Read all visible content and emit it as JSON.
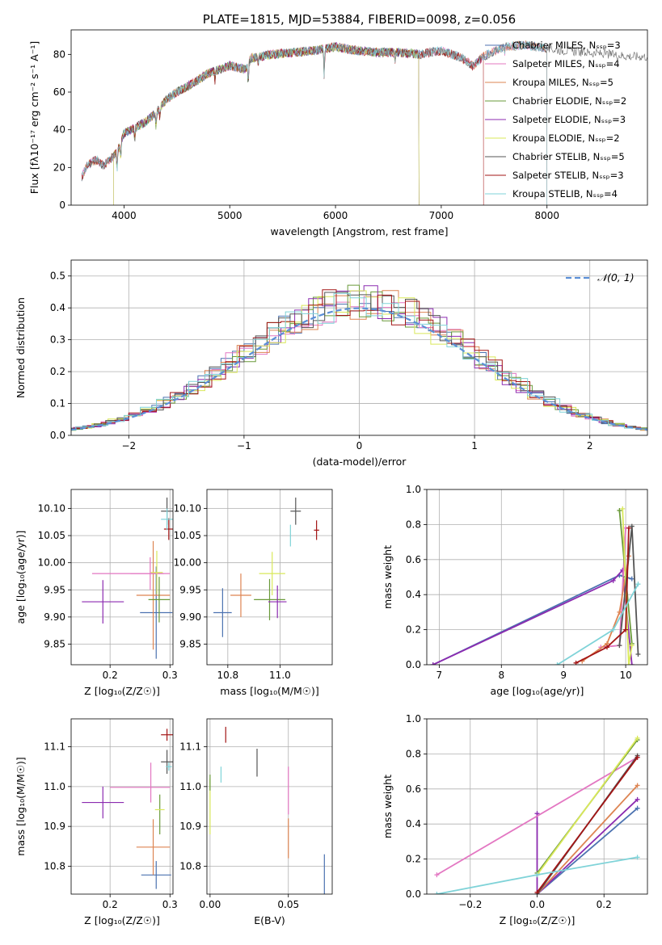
{
  "chart_data": [
    {
      "id": "spectrum",
      "type": "line",
      "title": "PLATE=1815, MJD=53884, FIBERID=0098, z=0.056",
      "xlabel": "wavelength [Angstrom, rest frame]",
      "ylabel": "Flux [fλ10⁻¹⁷ erg cm⁻² s⁻¹ A⁻¹]",
      "xlim": [
        3500,
        8950
      ],
      "ylim": [
        0,
        93
      ],
      "xticks": [
        4000,
        5000,
        6000,
        7000,
        8000
      ],
      "yticks": [
        0,
        20,
        40,
        60,
        80
      ],
      "grid": false,
      "legend_position": "right",
      "continuum": {
        "x": [
          3600,
          3650,
          3700,
          3750,
          3800,
          3850,
          3900,
          3950,
          4000,
          4100,
          4200,
          4300,
          4400,
          4500,
          4600,
          4800,
          5000,
          5150,
          5200,
          5400,
          5600,
          5800,
          6000,
          6200,
          6400,
          6600,
          6800,
          7000,
          7200,
          7300,
          7400,
          7600,
          7800,
          8000,
          8200,
          8400,
          8600,
          8800,
          8950
        ],
        "y": [
          15,
          21,
          23,
          24,
          21,
          23,
          26,
          30,
          38,
          41,
          44,
          49,
          56,
          60,
          63,
          70,
          74,
          72,
          78,
          80,
          81,
          82,
          84,
          82,
          81,
          81,
          80,
          82,
          78,
          74,
          79,
          84,
          85,
          83,
          82,
          81,
          80,
          79,
          79
        ]
      },
      "series": [
        {
          "name": "Chabrier MILES, Nₛₛₚ=3",
          "color": "#4c72b0",
          "xmax": 8000
        },
        {
          "name": "Salpeter MILES, Nₛₛₚ=4",
          "color": "#e377c2",
          "xmax": 8000
        },
        {
          "name": "Kroupa MILES, Nₛₛₚ=5",
          "color": "#dd8452",
          "xmax": 8000
        },
        {
          "name": "Chabrier ELODIE, Nₛₛₚ=2",
          "color": "#6a9a3a",
          "xmax": 6790
        },
        {
          "name": "Salpeter ELODIE, Nₛₛₚ=3",
          "color": "#8c2bb0",
          "xmax": 6790
        },
        {
          "name": "Kroupa ELODIE, Nₛₛₚ=2",
          "color": "#d9e85a",
          "xmax": 6790
        },
        {
          "name": "Chabrier STELIB, Nₛₛₚ=5",
          "color": "#555555",
          "xmax": 8950
        },
        {
          "name": "Salpeter STELIB, Nₛₛₚ=3",
          "color": "#a31515",
          "xmax": 7400
        },
        {
          "name": "Kroupa STELIB, Nₛₛₚ=4",
          "color": "#7fd3d8",
          "xmax": 8000
        }
      ]
    },
    {
      "id": "residuals",
      "type": "line",
      "xlabel": "(data-model)/error",
      "ylabel": "Normed distribution",
      "xlim": [
        -2.5,
        2.5
      ],
      "ylim": [
        0,
        0.55
      ],
      "xticks": [
        -2,
        -1,
        0,
        1,
        2
      ],
      "yticks": [
        0.0,
        0.1,
        0.2,
        0.3,
        0.4,
        0.5
      ],
      "grid": true,
      "legend_position": "top-right",
      "gaussian_label": "𝒩(0, 1)",
      "gaussian_color": "#5b8fd6"
    },
    {
      "id": "age_vs_Z",
      "type": "scatter",
      "xlabel": "Z [log₁₀(Z/Z☉)]",
      "ylabel": "age  [log₁₀(age/yr)]",
      "xlim": [
        0.135,
        0.305
      ],
      "ylim": [
        9.812,
        10.135
      ],
      "xticks": [
        0.2,
        0.3
      ],
      "yticks": [
        9.85,
        9.9,
        9.95,
        10.0,
        10.05,
        10.1
      ],
      "points": [
        {
          "x": 0.277,
          "y": 9.908,
          "xerr": 0.027,
          "yerr": 0.085,
          "color": "#4c72b0"
        },
        {
          "x": 0.267,
          "y": 9.98,
          "xerr": 0.033,
          "yerr": 0.03,
          "color": "#e377c2"
        },
        {
          "x": 0.272,
          "y": 9.94,
          "xerr": 0.028,
          "yerr": 0.1,
          "color": "#dd8452"
        },
        {
          "x": 0.282,
          "y": 9.932,
          "xerr": 0.018,
          "yerr": 0.042,
          "color": "#6a9a3a"
        },
        {
          "x": 0.188,
          "y": 9.928,
          "xerr": 0.035,
          "yerr": 0.04,
          "color": "#8c2bb0"
        },
        {
          "x": 0.23,
          "y": 9.98,
          "xerr": 0.06,
          "yerr": 0.0,
          "color": "#e377c2"
        },
        {
          "x": 0.278,
          "y": 9.982,
          "xerr": 0.01,
          "yerr": 0.04,
          "color": "#d9e85a"
        },
        {
          "x": 0.295,
          "y": 10.095,
          "xerr": 0.01,
          "yerr": 0.025,
          "color": "#555555"
        },
        {
          "x": 0.298,
          "y": 10.062,
          "xerr": 0.008,
          "yerr": 0.02,
          "color": "#a31515"
        },
        {
          "x": 0.295,
          "y": 10.08,
          "xerr": 0.01,
          "yerr": 0.02,
          "color": "#7fd3d8"
        }
      ]
    },
    {
      "id": "age_vs_mass",
      "type": "scatter",
      "xlabel": "mass [log₁₀(M/M☉)]",
      "ylabel": "",
      "xlim": [
        10.72,
        11.2
      ],
      "ylim": [
        9.812,
        10.135
      ],
      "xticks": [
        10.8,
        11.0
      ],
      "yticks": [
        9.85,
        9.9,
        9.95,
        10.0,
        10.05,
        10.1
      ],
      "points": [
        {
          "x": 10.78,
          "y": 9.908,
          "xerr": 0.035,
          "yerr": 0.045,
          "color": "#4c72b0"
        },
        {
          "x": 10.85,
          "y": 9.94,
          "xerr": 0.04,
          "yerr": 0.04,
          "color": "#dd8452"
        },
        {
          "x": 10.97,
          "y": 9.98,
          "xerr": 0.05,
          "yerr": 0.04,
          "color": "#d9e85a"
        },
        {
          "x": 10.96,
          "y": 9.932,
          "xerr": 0.06,
          "yerr": 0.038,
          "color": "#6a9a3a"
        },
        {
          "x": 10.99,
          "y": 9.928,
          "xerr": 0.035,
          "yerr": 0.03,
          "color": "#8c2bb0"
        },
        {
          "x": 11.04,
          "y": 10.05,
          "xerr": 0.0,
          "yerr": 0.02,
          "color": "#7fd3d8"
        },
        {
          "x": 11.06,
          "y": 10.095,
          "xerr": 0.02,
          "yerr": 0.025,
          "color": "#555555"
        },
        {
          "x": 11.14,
          "y": 10.06,
          "xerr": 0.01,
          "yerr": 0.018,
          "color": "#a31515"
        }
      ]
    },
    {
      "id": "weight_vs_age",
      "type": "line",
      "xlabel": "age  [log₁₀(age/yr)]",
      "ylabel": "mass weight",
      "xlim": [
        6.8,
        10.35
      ],
      "ylim": [
        0,
        1.0
      ],
      "xticks": [
        7,
        8,
        9,
        10
      ],
      "yticks": [
        0.0,
        0.2,
        0.4,
        0.6,
        0.8,
        1.0
      ],
      "series": [
        {
          "color": "#4c72b0",
          "x": [
            6.9,
            9.9,
            10.1
          ],
          "y": [
            0.0,
            0.51,
            0.49
          ]
        },
        {
          "color": "#8c2bb0",
          "x": [
            6.9,
            9.8,
            9.95,
            10.1
          ],
          "y": [
            0.0,
            0.48,
            0.54,
            0.0
          ]
        },
        {
          "color": "#e377c2",
          "x": [
            9.6,
            9.9,
            10.0
          ],
          "y": [
            0.1,
            0.11,
            0.78
          ]
        },
        {
          "color": "#dd8452",
          "x": [
            9.3,
            9.7,
            9.9,
            10.05
          ],
          "y": [
            0.02,
            0.12,
            0.3,
            0.62
          ]
        },
        {
          "color": "#6a9a3a",
          "x": [
            9.9,
            10.0,
            10.1
          ],
          "y": [
            0.88,
            0.5,
            0.12
          ]
        },
        {
          "color": "#d9e85a",
          "x": [
            9.95,
            10.05,
            10.1
          ],
          "y": [
            0.89,
            0.0,
            0.11
          ]
        },
        {
          "color": "#555555",
          "x": [
            9.9,
            10.1,
            10.2
          ],
          "y": [
            0.11,
            0.79,
            0.06
          ]
        },
        {
          "color": "#a31515",
          "x": [
            9.2,
            9.7,
            10.0,
            10.05
          ],
          "y": [
            0.01,
            0.1,
            0.2,
            0.78
          ]
        },
        {
          "color": "#7fd3d8",
          "x": [
            8.9,
            9.8,
            10.2
          ],
          "y": [
            0.0,
            0.2,
            0.46
          ]
        }
      ]
    },
    {
      "id": "mass_vs_Z",
      "type": "scatter",
      "xlabel": "Z [log₁₀(Z/Z☉)]",
      "ylabel": "mass [log₁₀(M/M☉)]",
      "xlim": [
        0.135,
        0.305
      ],
      "ylim": [
        10.73,
        11.17
      ],
      "xticks": [
        0.2,
        0.3
      ],
      "yticks": [
        10.8,
        10.9,
        11.0,
        11.1
      ],
      "points": [
        {
          "x": 0.277,
          "y": 10.778,
          "xerr": 0.025,
          "yerr": 0.035,
          "color": "#4c72b0"
        },
        {
          "x": 0.272,
          "y": 10.848,
          "xerr": 0.028,
          "yerr": 0.07,
          "color": "#dd8452"
        },
        {
          "x": 0.283,
          "y": 10.93,
          "xerr": 0.0,
          "yerr": 0.05,
          "color": "#6a9a3a"
        },
        {
          "x": 0.188,
          "y": 10.96,
          "xerr": 0.035,
          "yerr": 0.04,
          "color": "#8c2bb0"
        },
        {
          "x": 0.25,
          "y": 10.998,
          "xerr": 0.05,
          "yerr": 0.0,
          "color": "#e377c2"
        },
        {
          "x": 0.268,
          "y": 11.01,
          "xerr": 0.0,
          "yerr": 0.05,
          "color": "#e377c2"
        },
        {
          "x": 0.283,
          "y": 10.942,
          "xerr": 0.008,
          "yerr": 0.0,
          "color": "#d9e85a"
        },
        {
          "x": 0.295,
          "y": 11.13,
          "xerr": 0.01,
          "yerr": 0.015,
          "color": "#a31515"
        },
        {
          "x": 0.295,
          "y": 11.062,
          "xerr": 0.01,
          "yerr": 0.03,
          "color": "#555555"
        },
        {
          "x": 0.298,
          "y": 11.05,
          "xerr": 0.005,
          "yerr": 0.01,
          "color": "#7fd3d8"
        }
      ]
    },
    {
      "id": "mass_vs_EBV",
      "type": "scatter",
      "xlabel": "E(B-V)",
      "ylabel": "",
      "xlim": [
        -0.002,
        0.078
      ],
      "ylim": [
        10.73,
        11.17
      ],
      "xticks": [
        0.0,
        0.05
      ],
      "yticks": [
        10.8,
        10.9,
        11.0,
        11.1
      ],
      "points": [
        {
          "x": 0.0,
          "y": 10.95,
          "xerr": 0,
          "yerr": 0.07,
          "color": "#d9e85a"
        },
        {
          "x": 0.0,
          "y": 11.01,
          "xerr": 0,
          "yerr": 0.02,
          "color": "#6a9a3a"
        },
        {
          "x": 0.007,
          "y": 11.03,
          "xerr": 0,
          "yerr": 0.02,
          "color": "#7fd3d8"
        },
        {
          "x": 0.01,
          "y": 11.13,
          "xerr": 0,
          "yerr": 0.02,
          "color": "#a31515"
        },
        {
          "x": 0.03,
          "y": 11.06,
          "xerr": 0,
          "yerr": 0.035,
          "color": "#555555"
        },
        {
          "x": 0.05,
          "y": 10.99,
          "xerr": 0,
          "yerr": 0.06,
          "color": "#e377c2"
        },
        {
          "x": 0.05,
          "y": 10.87,
          "xerr": 0,
          "yerr": 0.05,
          "color": "#dd8452"
        },
        {
          "x": 0.073,
          "y": 10.78,
          "xerr": 0,
          "yerr": 0.05,
          "color": "#4c72b0"
        }
      ]
    },
    {
      "id": "weight_vs_Z",
      "type": "line",
      "xlabel": "Z [log₁₀(Z/Z☉)]",
      "ylabel": "mass weight",
      "xlim": [
        -0.33,
        0.33
      ],
      "ylim": [
        0,
        1.0
      ],
      "xticks": [
        -0.2,
        0.0,
        0.2
      ],
      "yticks": [
        0.0,
        0.2,
        0.4,
        0.6,
        0.8,
        1.0
      ],
      "series": [
        {
          "color": "#4c72b0",
          "x": [
            0.0,
            0.3
          ],
          "y": [
            0.0,
            0.49
          ]
        },
        {
          "color": "#8c2bb0",
          "x": [
            0.0,
            0.0,
            0.3
          ],
          "y": [
            0.46,
            0.0,
            0.54
          ]
        },
        {
          "color": "#e377c2",
          "x": [
            -0.3,
            0.3
          ],
          "y": [
            0.11,
            0.78
          ]
        },
        {
          "color": "#dd8452",
          "x": [
            0.0,
            0.3
          ],
          "y": [
            0.0,
            0.62
          ]
        },
        {
          "color": "#6a9a3a",
          "x": [
            0.0,
            0.3
          ],
          "y": [
            0.12,
            0.88
          ]
        },
        {
          "color": "#d9e85a",
          "x": [
            0.0,
            0.3
          ],
          "y": [
            0.11,
            0.89
          ]
        },
        {
          "color": "#555555",
          "x": [
            0.0,
            0.3
          ],
          "y": [
            0.0,
            0.79
          ]
        },
        {
          "color": "#a31515",
          "x": [
            0.0,
            0.3
          ],
          "y": [
            0.01,
            0.78
          ]
        },
        {
          "color": "#7fd3d8",
          "x": [
            -0.3,
            0.0,
            0.3
          ],
          "y": [
            0.0,
            0.11,
            0.21
          ]
        }
      ]
    }
  ]
}
